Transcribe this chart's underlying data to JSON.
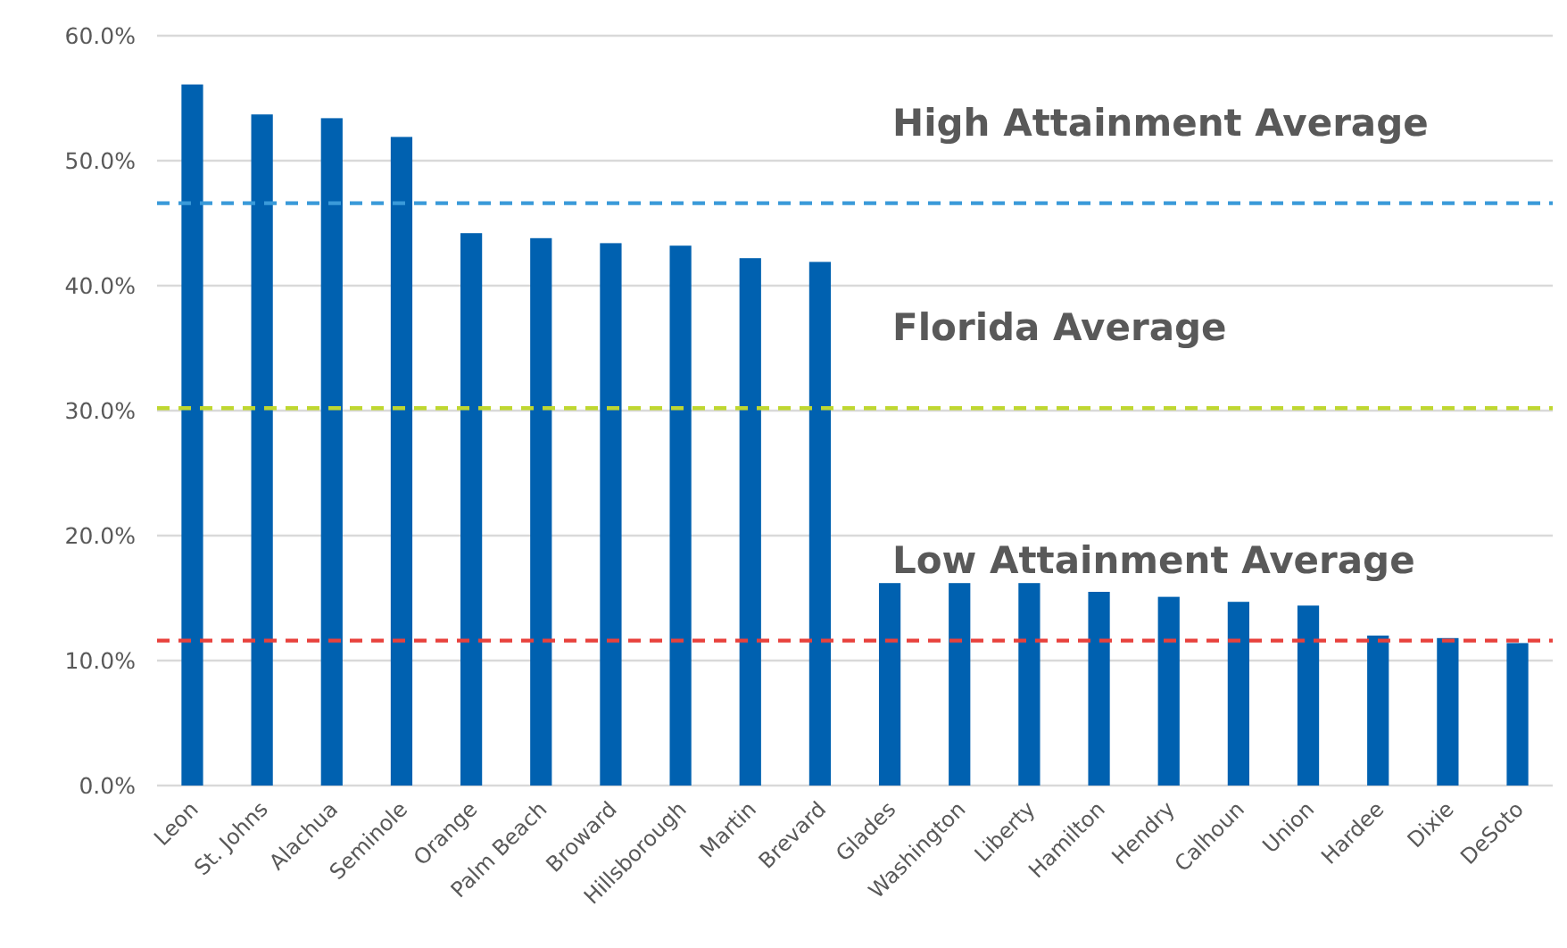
{
  "chart_data": {
    "type": "bar",
    "categories": [
      "Leon",
      "St. Johns",
      "Alachua",
      "Seminole",
      "Orange",
      "Palm Beach",
      "Broward",
      "Hillsborough",
      "Martin",
      "Brevard",
      "Glades",
      "Washington",
      "Liberty",
      "Hamilton",
      "Hendry",
      "Calhoun",
      "Union",
      "Hardee",
      "Dixie",
      "DeSoto"
    ],
    "values": [
      56.1,
      53.7,
      53.4,
      51.9,
      44.2,
      43.8,
      43.4,
      43.2,
      42.2,
      41.9,
      16.2,
      16.2,
      16.2,
      15.5,
      15.1,
      14.7,
      14.4,
      12.0,
      11.8,
      11.4
    ],
    "color": "#0061b0",
    "ylim": [
      0,
      60
    ],
    "yticks": [
      {
        "value": 0,
        "label": "0.0%"
      },
      {
        "value": 10,
        "label": "10.0%"
      },
      {
        "value": 20,
        "label": "20.0%"
      },
      {
        "value": 30,
        "label": "30.0%"
      },
      {
        "value": 40,
        "label": "40.0%"
      },
      {
        "value": 50,
        "label": "50.0%"
      },
      {
        "value": 60,
        "label": "60.0%"
      }
    ],
    "grid": "y",
    "ref_lines": [
      {
        "axis": "y",
        "value": 46.6,
        "label": "High Attainment Average",
        "color": "#3a9ad9",
        "line_style": "dashed"
      },
      {
        "axis": "y",
        "value": 30.2,
        "label": "Florida Average",
        "color": "#bfd730",
        "line_style": "dashed"
      },
      {
        "axis": "y",
        "value": 11.6,
        "label": "Low Attainment Average",
        "color": "#e8413c",
        "line_style": "dashed"
      }
    ]
  }
}
